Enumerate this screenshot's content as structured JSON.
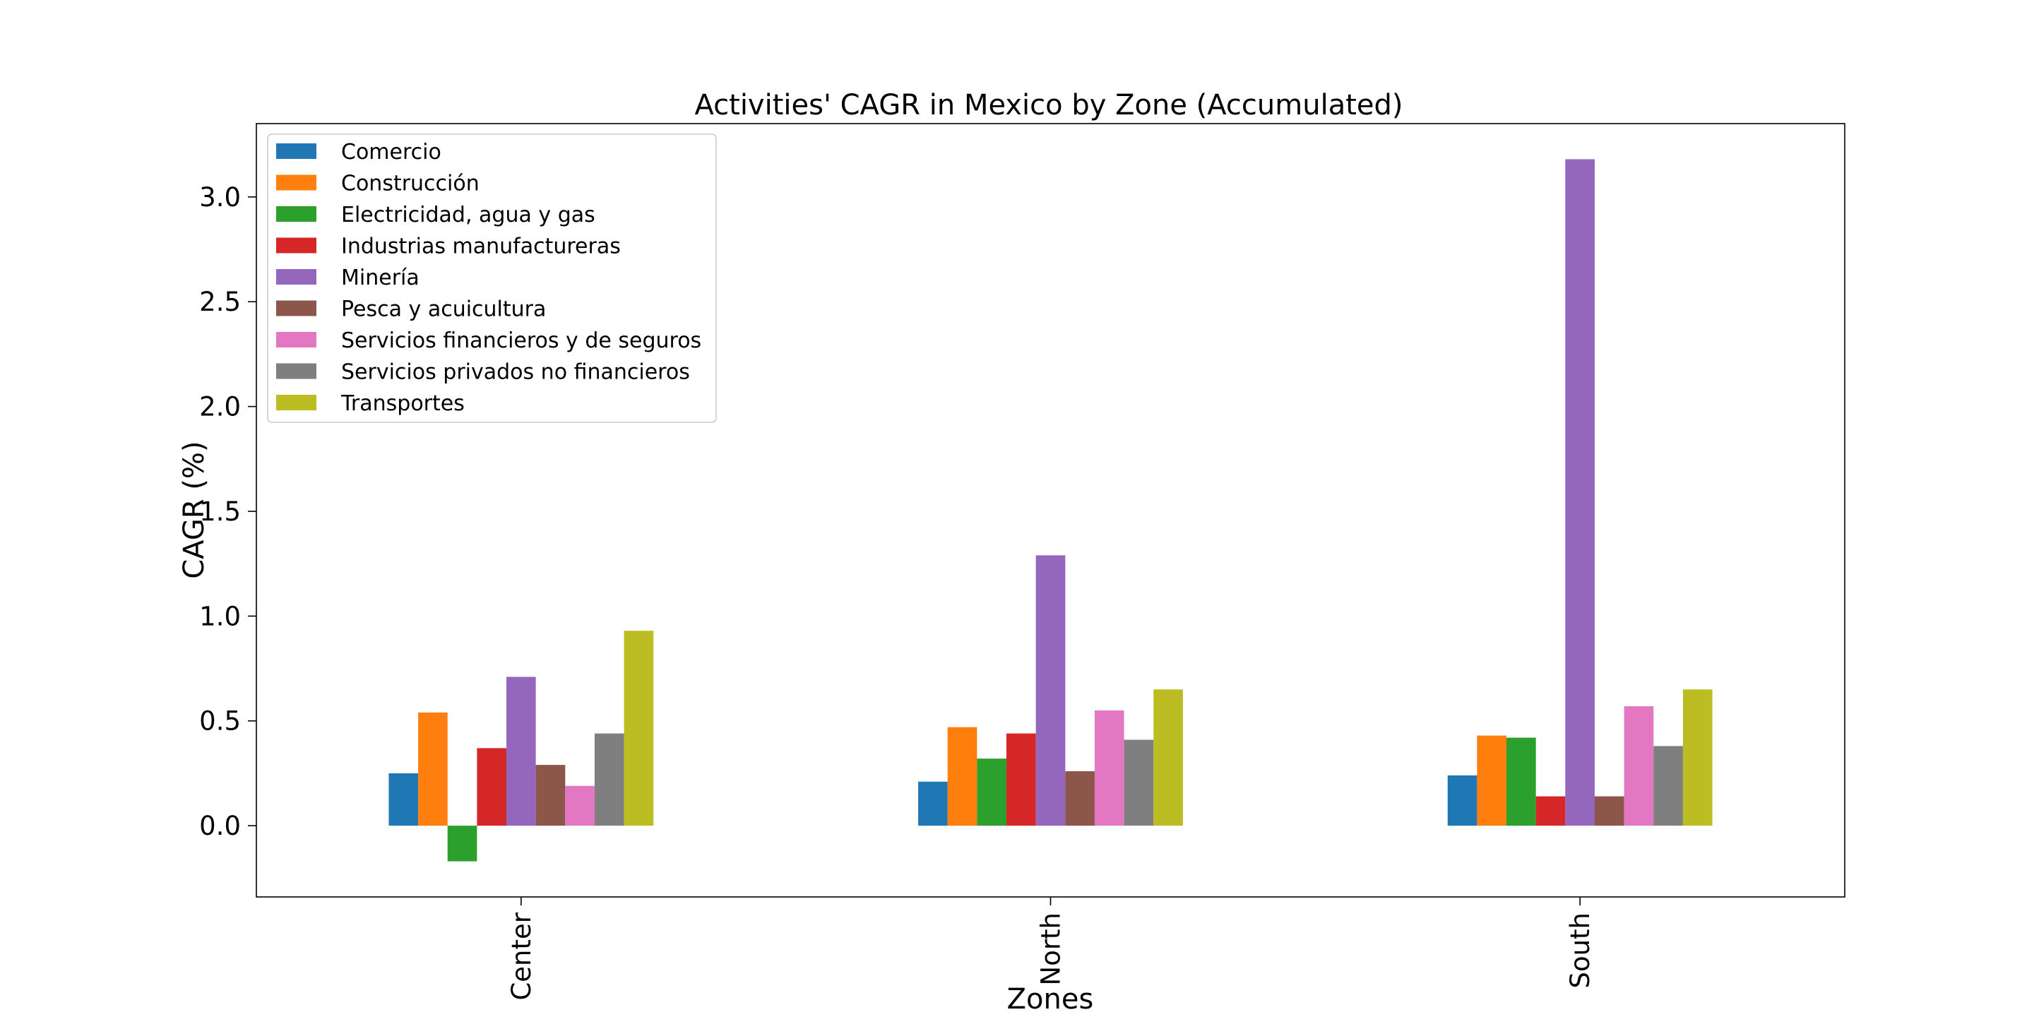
{
  "chart_data": {
    "type": "bar",
    "title": "Activities' CAGR in Mexico by Zone (Accumulated)",
    "xlabel": "Zones",
    "ylabel": "CAGR (%)",
    "categories": [
      "Center",
      "North",
      "South"
    ],
    "ylim": [
      -0.34,
      3.35
    ],
    "yticks": [
      0.0,
      0.5,
      1.0,
      1.5,
      2.0,
      2.5,
      3.0
    ],
    "ytick_labels": [
      "0.0",
      "0.5",
      "1.0",
      "1.5",
      "2.0",
      "2.5",
      "3.0"
    ],
    "grid": false,
    "legend_position": "top-left",
    "series": [
      {
        "name": "Comercio",
        "color": "#1f77b4",
        "values": [
          0.25,
          0.21,
          0.24
        ]
      },
      {
        "name": "Construcción",
        "color": "#ff7f0e",
        "values": [
          0.54,
          0.47,
          0.43
        ]
      },
      {
        "name": "Electricidad, agua y gas",
        "color": "#2ca02c",
        "values": [
          -0.17,
          0.32,
          0.42
        ]
      },
      {
        "name": "Industrias manufactureras",
        "color": "#d62728",
        "values": [
          0.37,
          0.44,
          0.14
        ]
      },
      {
        "name": "Minería",
        "color": "#9467bd",
        "values": [
          0.71,
          1.29,
          3.18
        ]
      },
      {
        "name": "Pesca y acuicultura",
        "color": "#8c564b",
        "values": [
          0.29,
          0.26,
          0.14
        ]
      },
      {
        "name": "Servicios financieros y de seguros",
        "color": "#e377c2",
        "values": [
          0.19,
          0.55,
          0.57
        ]
      },
      {
        "name": "Servicios privados no financieros",
        "color": "#7f7f7f",
        "values": [
          0.44,
          0.41,
          0.38
        ]
      },
      {
        "name": "Transportes",
        "color": "#bcbd22",
        "values": [
          0.93,
          0.65,
          0.65
        ]
      }
    ]
  }
}
